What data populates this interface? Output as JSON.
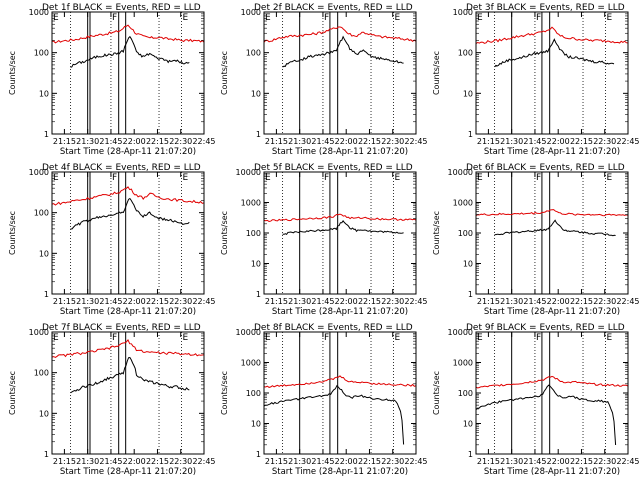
{
  "chart_data": {
    "type": "line",
    "time_range": [
      "21:07",
      "22:45"
    ],
    "x_ticks": [
      "21:15",
      "21:30",
      "21:45",
      "22:00",
      "22:15",
      "22:30",
      "22:45"
    ],
    "x_ticks_min": [
      8,
      23,
      38,
      53,
      68,
      83,
      98
    ],
    "xlabel": "Start Time (28-Apr-11 21:07:20)",
    "ylabel": "Counts/sec",
    "yscale": "log",
    "colors": {
      "events": "#000000",
      "lld": "#e00000"
    },
    "panels": [
      {
        "title": "Det 1f BLACK = Events, RED = LLD",
        "ylim": [
          1,
          1000
        ],
        "y_ticks": [
          "1",
          "10",
          "100",
          "1000"
        ],
        "y_ticks_val": [
          1,
          10,
          100,
          1000
        ],
        "markers": [
          {
            "label": "E",
            "min": 0,
            "style": "solid"
          },
          {
            "label": "",
            "min": 12,
            "style": "dotted"
          },
          {
            "label": "",
            "min": 23,
            "style": "solid"
          },
          {
            "label": "",
            "min": 24.5,
            "style": "solid"
          },
          {
            "label": "F",
            "min": 38,
            "style": "dotted"
          },
          {
            "label": "",
            "min": 43,
            "style": "solid"
          },
          {
            "label": "",
            "min": 47.5,
            "style": "solid"
          },
          {
            "label": "",
            "min": 69,
            "style": "dotted"
          },
          {
            "label": "E",
            "min": 83.5,
            "style": "dotted"
          }
        ],
        "events": {
          "start_min": 12,
          "end_min": 88.5,
          "values": [
            45,
            55,
            60,
            70,
            80,
            85,
            90,
            95,
            110,
            250,
            100,
            80,
            95,
            75,
            70,
            60,
            65,
            55,
            55
          ]
        },
        "lld": {
          "start_min": 0,
          "end_min": 98,
          "values": [
            180,
            190,
            200,
            210,
            230,
            250,
            270,
            290,
            310,
            350,
            480,
            300,
            250,
            230,
            240,
            220,
            215,
            200,
            200,
            195,
            190
          ]
        }
      },
      {
        "title": "Det 2f BLACK = Events, RED = LLD",
        "ylim": [
          1,
          1000
        ],
        "y_ticks": [
          "1",
          "10",
          "100",
          "1000"
        ],
        "y_ticks_val": [
          1,
          10,
          100,
          1000
        ],
        "markers": [
          {
            "label": "E",
            "min": 0,
            "style": "solid"
          },
          {
            "label": "",
            "min": 12,
            "style": "dotted"
          },
          {
            "label": "",
            "min": 23,
            "style": "solid"
          },
          {
            "label": "F",
            "min": 38,
            "style": "dotted"
          },
          {
            "label": "",
            "min": 42.5,
            "style": "solid"
          },
          {
            "label": "",
            "min": 47.5,
            "style": "solid"
          },
          {
            "label": "",
            "min": 69,
            "style": "dotted"
          },
          {
            "label": "E",
            "min": 83.5,
            "style": "dotted"
          }
        ],
        "events": {
          "start_min": 12,
          "end_min": 90,
          "values": [
            45,
            55,
            65,
            70,
            80,
            85,
            90,
            100,
            110,
            240,
            120,
            90,
            110,
            85,
            75,
            70,
            65,
            60,
            55
          ]
        },
        "lld": {
          "start_min": 0,
          "end_min": 98,
          "values": [
            190,
            200,
            230,
            250,
            260,
            270,
            280,
            300,
            330,
            380,
            450,
            300,
            250,
            320,
            280,
            250,
            240,
            230,
            220,
            210,
            200
          ]
        }
      },
      {
        "title": "Det 3f BLACK = Events, RED = LLD",
        "ylim": [
          1,
          1000
        ],
        "y_ticks": [
          "1",
          "10",
          "100",
          "1000"
        ],
        "y_ticks_val": [
          1,
          10,
          100,
          1000
        ],
        "markers": [
          {
            "label": "E",
            "min": 0,
            "style": "solid"
          },
          {
            "label": "",
            "min": 12,
            "style": "dotted"
          },
          {
            "label": "",
            "min": 23,
            "style": "solid"
          },
          {
            "label": "F",
            "min": 38,
            "style": "dotted"
          },
          {
            "label": "",
            "min": 42.5,
            "style": "solid"
          },
          {
            "label": "",
            "min": 47.5,
            "style": "solid"
          },
          {
            "label": "",
            "min": 69,
            "style": "dotted"
          },
          {
            "label": "E",
            "min": 83.5,
            "style": "dotted"
          }
        ],
        "events": {
          "start_min": 12,
          "end_min": 89,
          "values": [
            45,
            55,
            65,
            70,
            75,
            85,
            95,
            100,
            110,
            200,
            110,
            80,
            75,
            70,
            65,
            60,
            60,
            55,
            55
          ]
        },
        "lld": {
          "start_min": 0,
          "end_min": 98,
          "values": [
            170,
            180,
            190,
            200,
            220,
            240,
            260,
            280,
            300,
            330,
            400,
            260,
            230,
            220,
            210,
            200,
            200,
            195,
            190,
            185,
            180
          ]
        }
      },
      {
        "title": "Det 4f BLACK = Events, RED = LLD",
        "ylim": [
          1,
          1000
        ],
        "y_ticks": [
          "1",
          "10",
          "100",
          "1000"
        ],
        "y_ticks_val": [
          1,
          10,
          100,
          1000
        ],
        "markers": [
          {
            "label": "E",
            "min": 0,
            "style": "solid"
          },
          {
            "label": "",
            "min": 12,
            "style": "dotted"
          },
          {
            "label": "",
            "min": 23,
            "style": "solid"
          },
          {
            "label": "",
            "min": 24.5,
            "style": "solid"
          },
          {
            "label": "F",
            "min": 38,
            "style": "dotted"
          },
          {
            "label": "",
            "min": 43,
            "style": "solid"
          },
          {
            "label": "",
            "min": 47.5,
            "style": "solid"
          },
          {
            "label": "",
            "min": 69,
            "style": "dotted"
          },
          {
            "label": "E",
            "min": 83.5,
            "style": "dotted"
          }
        ],
        "events": {
          "start_min": 12,
          "end_min": 88.5,
          "values": [
            40,
            50,
            60,
            65,
            75,
            80,
            90,
            95,
            100,
            230,
            110,
            80,
            100,
            75,
            70,
            65,
            60,
            55,
            55
          ]
        },
        "lld": {
          "start_min": 0,
          "end_min": 98,
          "values": [
            160,
            170,
            180,
            200,
            210,
            230,
            250,
            270,
            290,
            330,
            420,
            280,
            230,
            290,
            240,
            220,
            210,
            200,
            190,
            185,
            180
          ]
        }
      },
      {
        "title": "Det 5f BLACK = Events, RED = LLD",
        "ylim": [
          1,
          10000
        ],
        "y_ticks": [
          "1",
          "10",
          "100",
          "1000",
          "10000"
        ],
        "y_ticks_val": [
          1,
          10,
          100,
          1000,
          10000
        ],
        "markers": [
          {
            "label": "E",
            "min": 0,
            "style": "solid"
          },
          {
            "label": "",
            "min": 12,
            "style": "dotted"
          },
          {
            "label": "",
            "min": 23,
            "style": "solid"
          },
          {
            "label": "F",
            "min": 38,
            "style": "dotted"
          },
          {
            "label": "",
            "min": 42.5,
            "style": "solid"
          },
          {
            "label": "",
            "min": 47.5,
            "style": "solid"
          },
          {
            "label": "",
            "min": 69,
            "style": "dotted"
          },
          {
            "label": "E",
            "min": 83.5,
            "style": "dotted"
          }
        ],
        "events": {
          "start_min": 12,
          "end_min": 90,
          "values": [
            90,
            100,
            105,
            110,
            115,
            120,
            125,
            130,
            140,
            250,
            150,
            120,
            130,
            115,
            110,
            110,
            105,
            105,
            100
          ]
        },
        "lld": {
          "start_min": 0,
          "end_min": 98,
          "values": [
            250,
            255,
            260,
            270,
            280,
            290,
            300,
            310,
            320,
            340,
            420,
            320,
            300,
            320,
            300,
            290,
            285,
            280,
            280,
            275,
            270
          ]
        }
      },
      {
        "title": "Det 6f BLACK = Events, RED = LLD",
        "ylim": [
          1,
          10000
        ],
        "y_ticks": [
          "1",
          "10",
          "100",
          "1000",
          "10000"
        ],
        "y_ticks_val": [
          1,
          10,
          100,
          1000,
          10000
        ],
        "markers": [
          {
            "label": "E",
            "min": 0,
            "style": "solid"
          },
          {
            "label": "",
            "min": 12,
            "style": "dotted"
          },
          {
            "label": "",
            "min": 23,
            "style": "solid"
          },
          {
            "label": "F",
            "min": 38,
            "style": "dotted"
          },
          {
            "label": "",
            "min": 42.5,
            "style": "solid"
          },
          {
            "label": "",
            "min": 47.5,
            "style": "solid"
          },
          {
            "label": "",
            "min": 69,
            "style": "dotted"
          },
          {
            "label": "E",
            "min": 83.5,
            "style": "dotted"
          }
        ],
        "events": {
          "start_min": 12,
          "end_min": 90,
          "values": [
            85,
            95,
            100,
            105,
            110,
            115,
            120,
            125,
            135,
            250,
            140,
            110,
            115,
            105,
            100,
            95,
            95,
            90,
            85
          ]
        },
        "lld": {
          "start_min": 0,
          "end_min": 98,
          "values": [
            400,
            400,
            405,
            410,
            415,
            420,
            430,
            440,
            450,
            480,
            600,
            440,
            420,
            410,
            405,
            400,
            400,
            395,
            395,
            390,
            390
          ]
        }
      },
      {
        "title": "Det 7f BLACK = Events, RED = LLD",
        "ylim": [
          1,
          1000
        ],
        "y_ticks": [
          "1",
          "10",
          "100",
          "1000"
        ],
        "y_ticks_val": [
          1,
          10,
          100,
          1000
        ],
        "markers": [
          {
            "label": "E",
            "min": 0,
            "style": "solid"
          },
          {
            "label": "",
            "min": 12,
            "style": "dotted"
          },
          {
            "label": "",
            "min": 23,
            "style": "solid"
          },
          {
            "label": "",
            "min": 24.5,
            "style": "solid"
          },
          {
            "label": "F",
            "min": 38,
            "style": "dotted"
          },
          {
            "label": "",
            "min": 43,
            "style": "solid"
          },
          {
            "label": "",
            "min": 47.5,
            "style": "solid"
          },
          {
            "label": "",
            "min": 69,
            "style": "dotted"
          },
          {
            "label": "E",
            "min": 83.5,
            "style": "dotted"
          }
        ],
        "events": {
          "start_min": 12,
          "end_min": 88.5,
          "values": [
            30,
            38,
            45,
            50,
            55,
            65,
            75,
            85,
            100,
            250,
            90,
            65,
            60,
            55,
            50,
            45,
            45,
            40,
            40
          ]
        },
        "lld": {
          "start_min": 0,
          "end_min": 98,
          "values": [
            250,
            260,
            270,
            290,
            300,
            320,
            350,
            380,
            420,
            480,
            600,
            380,
            330,
            320,
            310,
            300,
            300,
            290,
            285,
            280,
            280
          ]
        }
      },
      {
        "title": "Det 8f BLACK = Events, RED = LLD",
        "ylim": [
          1,
          10000
        ],
        "y_ticks": [
          "1",
          "10",
          "100",
          "1000",
          "10000"
        ],
        "y_ticks_val": [
          1,
          10,
          100,
          1000,
          10000
        ],
        "markers": [
          {
            "label": "E",
            "min": 0,
            "style": "solid"
          },
          {
            "label": "",
            "min": 12,
            "style": "dotted"
          },
          {
            "label": "",
            "min": 23,
            "style": "solid"
          },
          {
            "label": "F",
            "min": 38,
            "style": "dotted"
          },
          {
            "label": "",
            "min": 42.5,
            "style": "solid"
          },
          {
            "label": "",
            "min": 47.5,
            "style": "solid"
          },
          {
            "label": "",
            "min": 69,
            "style": "dotted"
          },
          {
            "label": "E",
            "min": 83.5,
            "style": "dotted"
          }
        ],
        "events": {
          "start_min": 0,
          "end_min": 90,
          "values": [
            40,
            45,
            50,
            55,
            60,
            65,
            70,
            75,
            80,
            90,
            170,
            90,
            70,
            85,
            70,
            65,
            60,
            60,
            55,
            2
          ]
        },
        "lld": {
          "start_min": 0,
          "end_min": 98,
          "values": [
            160,
            165,
            170,
            180,
            190,
            200,
            210,
            230,
            250,
            280,
            350,
            250,
            220,
            230,
            210,
            200,
            195,
            190,
            185,
            180,
            175
          ]
        }
      },
      {
        "title": "Det 9f BLACK = Events, RED = LLD",
        "ylim": [
          1,
          10000
        ],
        "y_ticks": [
          "1",
          "10",
          "100",
          "1000",
          "10000"
        ],
        "y_ticks_val": [
          1,
          10,
          100,
          1000,
          10000
        ],
        "markers": [
          {
            "label": "E",
            "min": 0,
            "style": "solid"
          },
          {
            "label": "",
            "min": 12,
            "style": "dotted"
          },
          {
            "label": "",
            "min": 23,
            "style": "solid"
          },
          {
            "label": "F",
            "min": 38,
            "style": "dotted"
          },
          {
            "label": "",
            "min": 42.5,
            "style": "solid"
          },
          {
            "label": "",
            "min": 47.5,
            "style": "solid"
          },
          {
            "label": "",
            "min": 69,
            "style": "dotted"
          },
          {
            "label": "E",
            "min": 83.5,
            "style": "dotted"
          }
        ],
        "events": {
          "start_min": 0,
          "end_min": 90,
          "values": [
            30,
            38,
            45,
            50,
            55,
            60,
            65,
            70,
            75,
            85,
            180,
            85,
            70,
            80,
            65,
            60,
            55,
            55,
            50,
            2
          ]
        },
        "lld": {
          "start_min": 0,
          "end_min": 98,
          "values": [
            150,
            160,
            170,
            180,
            190,
            200,
            210,
            230,
            250,
            280,
            350,
            250,
            220,
            230,
            210,
            200,
            190,
            185,
            180,
            175,
            170
          ]
        }
      }
    ]
  }
}
